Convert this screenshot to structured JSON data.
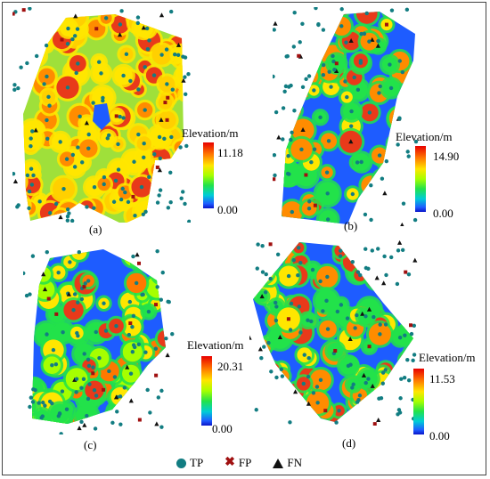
{
  "legend": {
    "tp": {
      "label": "TP",
      "color": "#127d82"
    },
    "fp": {
      "label": "FP",
      "color": "#a01010"
    },
    "fn": {
      "label": "FN",
      "color": "#111111"
    }
  },
  "panels": [
    {
      "id": "a",
      "label": "(a)",
      "colorbar_title": "Elevation/m",
      "max": "11.18",
      "min": "0.00"
    },
    {
      "id": "b",
      "label": "(b)",
      "colorbar_title": "Elevation/m",
      "max": "14.90",
      "min": "0.00"
    },
    {
      "id": "c",
      "label": "(c)",
      "colorbar_title": "Elevation/m",
      "max": "20.31",
      "min": "0.00"
    },
    {
      "id": "d",
      "label": "(d)",
      "colorbar_title": "Elevation/m",
      "max": "11.53",
      "min": "0.00"
    }
  ],
  "colors": {
    "low": "#0a14c8",
    "mid": "#22e24a",
    "high": "#e80000"
  }
}
